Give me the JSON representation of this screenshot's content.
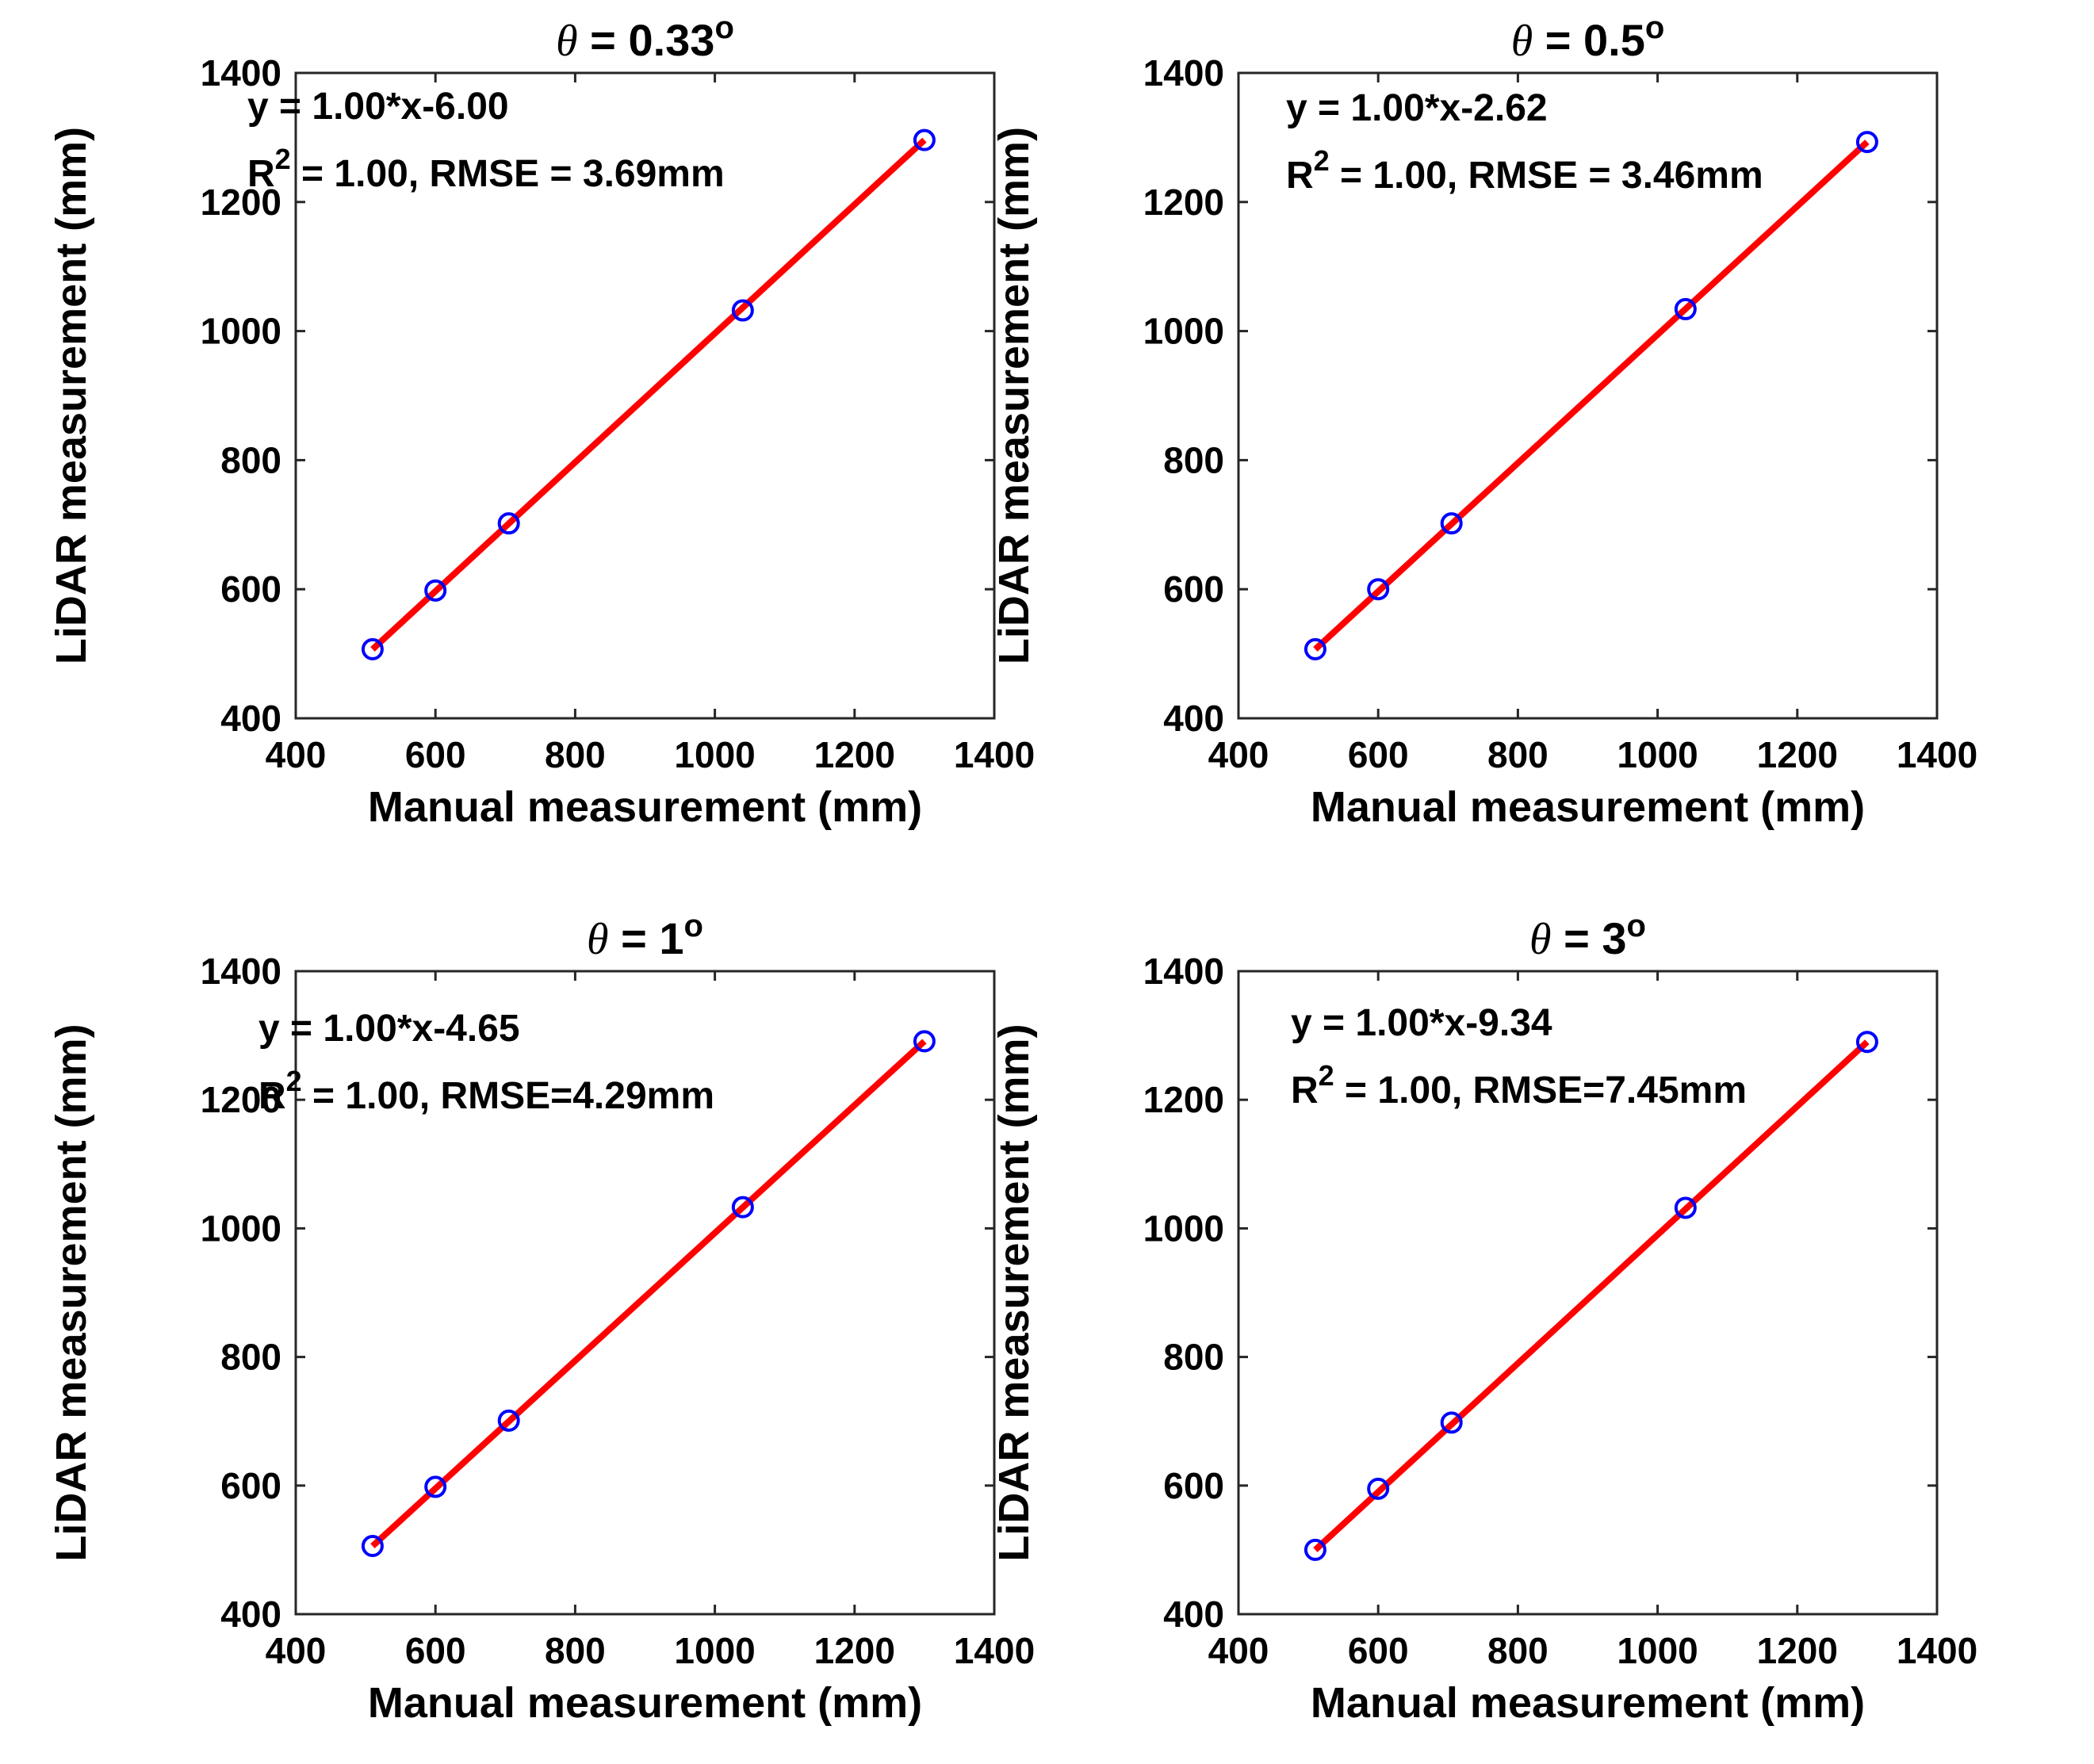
{
  "chart_data": [
    {
      "type": "scatter",
      "title": {
        "symbol": "θ",
        "text": " = 0.33",
        "unit": "o"
      },
      "xlabel": "Manual measurement  (mm)",
      "ylabel": "LiDAR measurement  (mm)",
      "xlim": [
        400,
        1400
      ],
      "ylim": [
        400,
        1400
      ],
      "xticks": [
        "400",
        "600",
        "800",
        "1000",
        "1200",
        "1400"
      ],
      "yticks": [
        "400",
        "600",
        "800",
        "1000",
        "1200",
        "1400"
      ],
      "points": {
        "x": [
          510,
          600,
          705,
          1040,
          1300
        ],
        "y": [
          507,
          598,
          702,
          1032,
          1296
        ]
      },
      "fit": {
        "x": [
          510,
          1300
        ],
        "y": [
          507,
          1296
        ]
      },
      "equation": "y = 1.00*x-6.00",
      "stats": {
        "r_label": "R",
        "r_exp": "2",
        "text": " = 1.00,  RMSE = 3.69mm"
      },
      "marker_color": "#0000ff",
      "line_color": "#ff0000"
    },
    {
      "type": "scatter",
      "title": {
        "symbol": "θ",
        "text": " = 0.5",
        "unit": "o"
      },
      "xlabel": "Manual measurement  (mm)",
      "ylabel": "LiDAR measurement  (mm)",
      "xlim": [
        400,
        1400
      ],
      "ylim": [
        400,
        1400
      ],
      "xticks": [
        "400",
        "600",
        "800",
        "1000",
        "1200",
        "1400"
      ],
      "yticks": [
        "400",
        "600",
        "800",
        "1000",
        "1200",
        "1400"
      ],
      "points": {
        "x": [
          510,
          600,
          705,
          1040,
          1300
        ],
        "y": [
          507,
          600,
          702,
          1034,
          1293
        ]
      },
      "fit": {
        "x": [
          510,
          1300
        ],
        "y": [
          507,
          1293
        ]
      },
      "equation": "y = 1.00*x-2.62",
      "stats": {
        "r_label": "R",
        "r_exp": "2",
        "text": " = 1.00,  RMSE = 3.46mm"
      },
      "marker_color": "#0000ff",
      "line_color": "#ff0000"
    },
    {
      "type": "scatter",
      "title": {
        "symbol": "θ",
        "text": " = 1",
        "unit": "o"
      },
      "xlabel": "Manual measurement  (mm)",
      "ylabel": "LiDAR measurement  (mm)",
      "xlim": [
        400,
        1400
      ],
      "ylim": [
        400,
        1400
      ],
      "xticks": [
        "400",
        "600",
        "800",
        "1000",
        "1200",
        "1400"
      ],
      "yticks": [
        "400",
        "600",
        "800",
        "1000",
        "1200",
        "1400"
      ],
      "points": {
        "x": [
          510,
          600,
          705,
          1040,
          1300
        ],
        "y": [
          506,
          598,
          701,
          1033,
          1291
        ]
      },
      "fit": {
        "x": [
          510,
          1300
        ],
        "y": [
          506,
          1291
        ]
      },
      "equation": "y = 1.00*x-4.65",
      "stats": {
        "r_label": "R",
        "r_exp": "2",
        "text": " = 1.00,  RMSE=4.29mm"
      },
      "marker_color": "#0000ff",
      "line_color": "#ff0000"
    },
    {
      "type": "scatter",
      "title": {
        "symbol": "θ",
        "text": " = 3",
        "unit": "o"
      },
      "xlabel": "Manual measurement  (mm)",
      "ylabel": "LiDAR measurement  (mm)",
      "xlim": [
        400,
        1400
      ],
      "ylim": [
        400,
        1400
      ],
      "xticks": [
        "400",
        "600",
        "800",
        "1000",
        "1200",
        "1400"
      ],
      "yticks": [
        "400",
        "600",
        "800",
        "1000",
        "1200",
        "1400"
      ],
      "points": {
        "x": [
          510,
          600,
          705,
          1040,
          1300
        ],
        "y": [
          500,
          595,
          698,
          1032,
          1290
        ]
      },
      "fit": {
        "x": [
          510,
          1300
        ],
        "y": [
          500,
          1290
        ]
      },
      "equation": "y = 1.00*x-9.34",
      "stats": {
        "r_label": "R",
        "r_exp": "2",
        "text": " = 1.00,  RMSE=7.45mm"
      },
      "marker_color": "#0000ff",
      "line_color": "#ff0000"
    }
  ]
}
